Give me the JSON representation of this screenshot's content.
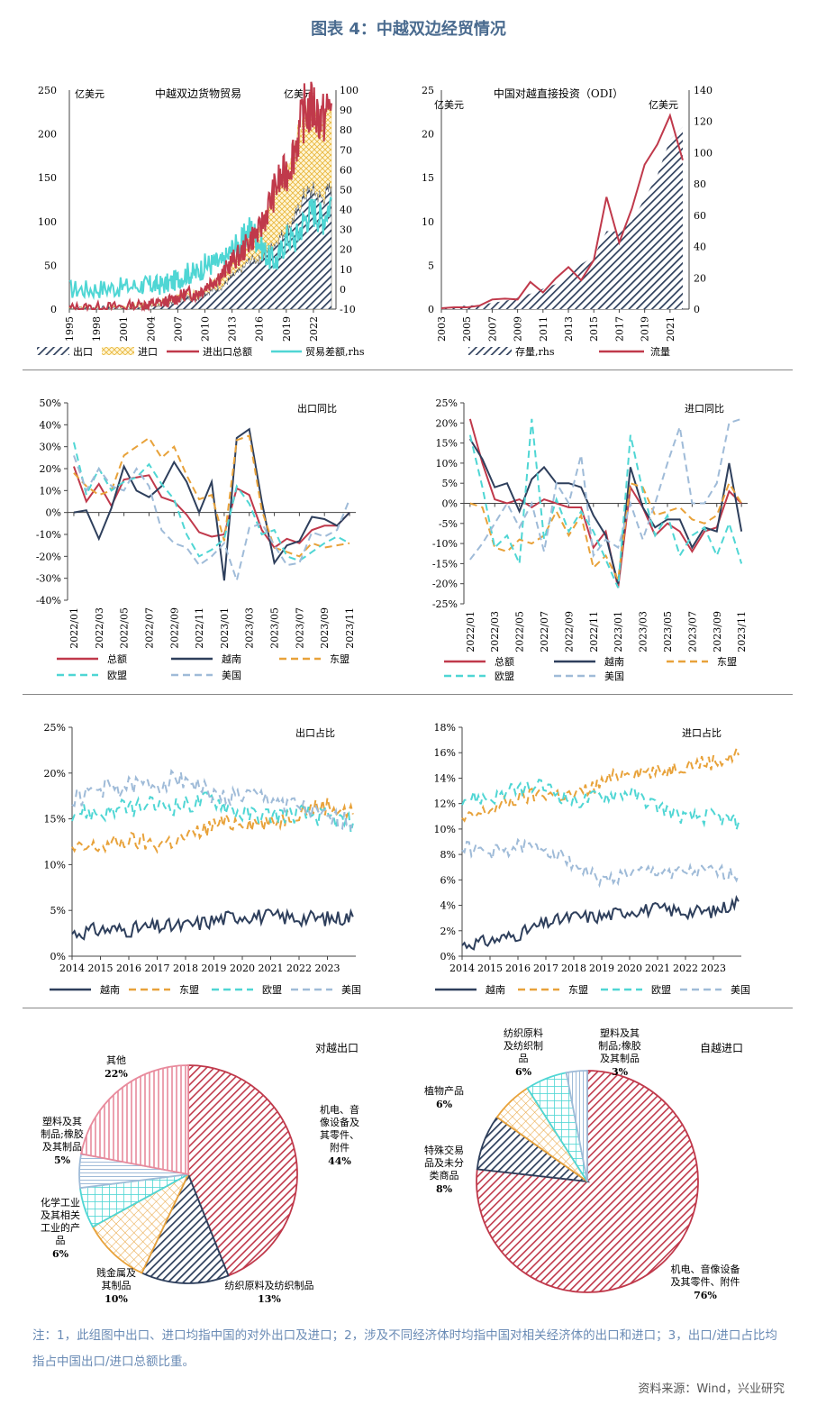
{
  "title": "图表 4：中越双边经贸情况",
  "note": "注：1，此组图中出口、进口均指中国的对外出口及进口；2，涉及不同经济体时均指中国对相关经济体的出口和进口；3，出口/进口占比均指占中国出口/进口总额比重。",
  "source": "资料来源：Wind，兴业研究",
  "colors": {
    "red": "#c0394b",
    "navy": "#2e3f5c",
    "orange": "#e8a23a",
    "teal": "#4fd6d4",
    "lightblue": "#9fbbd8"
  },
  "chart_data": [
    {
      "id": "trade",
      "type": "area",
      "title": "中越双边货物贸易",
      "unit_left": "亿美元",
      "unit_right": "亿美元",
      "ylim": [
        0,
        250
      ],
      "yticks": [
        0,
        50,
        100,
        150,
        200,
        250
      ],
      "y2lim": [
        -10,
        100
      ],
      "y2ticks": [
        -10,
        0,
        10,
        20,
        30,
        40,
        50,
        60,
        70,
        80,
        90,
        100
      ],
      "xlim": [
        1995,
        2024.5
      ],
      "xticks": [
        "1995",
        "1998",
        "2001",
        "2004",
        "2007",
        "2010",
        "2013",
        "2016",
        "2019",
        "2022"
      ],
      "x": [
        1995,
        1997,
        1999,
        2001,
        2003,
        2004,
        2005,
        2006,
        2007,
        2008,
        2009,
        2010,
        2011,
        2012,
        2013,
        2014,
        2015,
        2016,
        2017,
        2018,
        2019,
        2020,
        2021,
        2022,
        2023,
        2024
      ],
      "series": [
        {
          "name": "出口",
          "legend": "出口",
          "values": [
            0.5,
            0.8,
            1,
            1.5,
            2.5,
            3.5,
            4.5,
            6,
            9,
            13,
            12,
            18,
            22,
            26,
            37,
            43,
            56,
            56,
            66,
            78,
            90,
            105,
            130,
            135,
            125,
            140
          ]
        },
        {
          "name": "进口",
          "legend": "进口",
          "values": [
            0.5,
            0.6,
            0.8,
            1,
            1.5,
            2,
            2.5,
            3,
            4,
            5,
            5,
            7,
            10,
            13,
            17,
            20,
            25,
            33,
            50,
            64,
            64,
            80,
            95,
            95,
            90,
            95
          ]
        },
        {
          "name": "进出口总额",
          "legend": "进出口总额",
          "values": [
            1,
            1.5,
            2,
            3,
            4.5,
            6,
            7,
            9,
            13,
            18,
            17,
            25,
            33,
            40,
            55,
            63,
            80,
            88,
            116,
            143,
            155,
            185,
            225,
            230,
            215,
            235
          ]
        },
        {
          "name": "贸易差额",
          "legend": "贸易差额,rhs",
          "values": [
            0,
            0,
            0.5,
            1,
            2,
            2,
            2,
            3,
            5,
            8,
            8,
            12,
            13,
            13,
            20,
            23,
            31,
            24,
            16,
            14,
            26,
            25,
            35,
            40,
            35,
            45
          ]
        }
      ]
    },
    {
      "id": "odi",
      "type": "area",
      "title": "中国对越直接投资（ODI）",
      "unit_left": "亿美元",
      "unit_right": "亿美元",
      "ylim": [
        0,
        25
      ],
      "yticks": [
        0,
        5,
        10,
        15,
        20,
        25
      ],
      "y2lim": [
        0,
        140
      ],
      "y2ticks": [
        0,
        20,
        40,
        60,
        80,
        100,
        120,
        140
      ],
      "xlim": [
        2003,
        2022.5
      ],
      "xticks": [
        "2003",
        "2005",
        "2007",
        "2009",
        "2011",
        "2013",
        "2015",
        "2017",
        "2019",
        "2021"
      ],
      "x": [
        2003,
        2004,
        2005,
        2006,
        2007,
        2008,
        2009,
        2010,
        2011,
        2012,
        2013,
        2014,
        2015,
        2016,
        2017,
        2018,
        2019,
        2020,
        2021,
        2022
      ],
      "series": [
        {
          "name": "存量",
          "legend": "存量,rhs",
          "values": [
            0.3,
            1.6,
            2.3,
            2.5,
            4,
            5.2,
            7.3,
            9.9,
            13,
            16,
            21.7,
            28.7,
            33.7,
            49.8,
            49.7,
            56.1,
            70.7,
            85.7,
            108.5,
            116.6
          ]
        },
        {
          "name": "流量",
          "legend": "流量",
          "values": [
            0.1,
            0.2,
            0.2,
            0.4,
            1.1,
            1.2,
            1.1,
            3.1,
            1.9,
            3.5,
            4.8,
            3.3,
            5.6,
            12.8,
            7.6,
            11.5,
            16.5,
            18.8,
            22.1,
            17
          ]
        }
      ]
    },
    {
      "id": "export_yoy",
      "type": "line",
      "title": "出口同比",
      "ylim": [
        -40,
        50
      ],
      "yticks": [
        "-40%",
        "-30%",
        "-20%",
        "-10%",
        "0%",
        "10%",
        "20%",
        "30%",
        "40%",
        "50%"
      ],
      "categories": [
        "2022/01",
        "2022/02",
        "2022/03",
        "2022/04",
        "2022/05",
        "2022/06",
        "2022/07",
        "2022/08",
        "2022/09",
        "2022/10",
        "2022/11",
        "2022/12",
        "2023/01",
        "2023/02",
        "2023/03",
        "2023/04",
        "2023/05",
        "2023/06",
        "2023/07",
        "2023/08",
        "2023/09",
        "2023/10",
        "2023/11"
      ],
      "xticks": [
        "2022/01",
        "2022/03",
        "2022/05",
        "2022/07",
        "2022/09",
        "2022/11",
        "2023/01",
        "2023/03",
        "2023/05",
        "2023/07",
        "2023/09",
        "2023/11"
      ],
      "series": [
        {
          "name": "总额",
          "values": [
            21,
            5,
            13,
            3,
            15,
            16,
            17,
            7,
            5,
            -1,
            -9,
            -11,
            -10,
            11,
            8,
            -8,
            -16,
            -12,
            -14,
            -8,
            -6,
            -6,
            0
          ]
        },
        {
          "name": "越南",
          "values": [
            0,
            1,
            -12,
            2,
            21,
            10,
            7,
            12,
            23,
            14,
            0,
            14,
            -31,
            34,
            38,
            5,
            -23,
            -15,
            -13,
            -2,
            -3,
            -6,
            0
          ]
        },
        {
          "name": "东盟",
          "values": [
            18,
            12,
            8,
            10,
            26,
            30,
            34,
            25,
            30,
            17,
            6,
            8,
            -13,
            33,
            35,
            1,
            -16,
            -18,
            -20,
            -14,
            -16,
            -15,
            -14
          ]
        },
        {
          "name": "欧盟",
          "values": [
            32,
            8,
            20,
            10,
            14,
            16,
            22,
            13,
            6,
            -10,
            -20,
            -17,
            -12,
            12,
            4,
            -10,
            -8,
            -20,
            -22,
            -18,
            -14,
            -11,
            -14
          ]
        },
        {
          "name": "美国",
          "values": [
            26,
            10,
            20,
            12,
            10,
            20,
            12,
            -8,
            -14,
            -16,
            -24,
            -20,
            -14,
            -31,
            -7,
            -5,
            -15,
            -24,
            -23,
            -9,
            -11,
            -8,
            6
          ]
        }
      ]
    },
    {
      "id": "import_yoy",
      "type": "line",
      "title": "进口同比",
      "ylim": [
        -25,
        25
      ],
      "yticks": [
        "-25%",
        "-20%",
        "-15%",
        "-10%",
        "-5%",
        "0%",
        "5%",
        "10%",
        "15%",
        "20%",
        "25%"
      ],
      "categories": [
        "2022/01",
        "2022/02",
        "2022/03",
        "2022/04",
        "2022/05",
        "2022/06",
        "2022/07",
        "2022/08",
        "2022/09",
        "2022/10",
        "2022/11",
        "2022/12",
        "2023/01",
        "2023/02",
        "2023/03",
        "2023/04",
        "2023/05",
        "2023/06",
        "2023/07",
        "2023/08",
        "2023/09",
        "2023/10",
        "2023/11"
      ],
      "xticks": [
        "2022/01",
        "2022/03",
        "2022/05",
        "2022/07",
        "2022/09",
        "2022/11",
        "2023/01",
        "2023/03",
        "2023/05",
        "2023/07",
        "2023/09",
        "2023/11"
      ],
      "series": [
        {
          "name": "总额",
          "values": [
            21,
            10,
            1,
            0,
            1,
            -1,
            1,
            0,
            -1,
            -1,
            -11,
            -7,
            -21,
            4,
            -1,
            -8,
            -5,
            -7,
            -12,
            -7,
            -6,
            3,
            0
          ]
        },
        {
          "name": "越南",
          "values": [
            16,
            11,
            4,
            5,
            -2,
            6,
            9,
            5,
            5,
            4,
            -3,
            -8,
            -20,
            9,
            -1,
            -6,
            -4,
            -4,
            -11,
            -6,
            -7,
            10,
            -7
          ]
        },
        {
          "name": "东盟",
          "values": [
            0,
            -1,
            -11,
            -12,
            -9,
            -10,
            -8,
            -2,
            -8,
            -3,
            -16,
            -13,
            -19,
            5,
            4,
            -3,
            -2,
            -1,
            -4,
            -5,
            -3,
            5,
            0
          ]
        },
        {
          "name": "欧盟",
          "values": [
            17,
            4,
            -11,
            -8,
            -15,
            21,
            -9,
            1,
            -7,
            -2,
            -7,
            -14,
            -21,
            17,
            3,
            -8,
            -3,
            -13,
            -8,
            -6,
            -13,
            -5,
            -15
          ]
        },
        {
          "name": "美国",
          "values": [
            -14,
            -10,
            -5,
            0,
            -6,
            0,
            -12,
            5,
            0,
            12,
            -13,
            -9,
            -11,
            0,
            -9,
            0,
            10,
            19,
            0,
            0,
            5,
            20,
            21
          ]
        }
      ]
    },
    {
      "id": "export_share",
      "type": "line",
      "title": "出口占比",
      "ylim": [
        0,
        25
      ],
      "yticks": [
        "0%",
        "5%",
        "10%",
        "15%",
        "20%",
        "25%"
      ],
      "xlim": [
        2014,
        2024
      ],
      "xticks": [
        "2014",
        "2015",
        "2016",
        "2017",
        "2018",
        "2019",
        "2020",
        "2021",
        "2022",
        "2023"
      ],
      "x": [
        2014,
        2015,
        2016,
        2017,
        2018,
        2019,
        2020,
        2021,
        2022,
        2023,
        2023.9
      ],
      "series": [
        {
          "name": "越南",
          "values": [
            2.5,
            2.9,
            2.9,
            3.2,
            3.3,
            3.9,
            4.5,
            4.3,
            4.2,
            4.1,
            4.3
          ]
        },
        {
          "name": "东盟",
          "values": [
            11.5,
            12,
            12.6,
            12.2,
            12.9,
            14.3,
            14.8,
            14.4,
            15.9,
            16.5,
            15.5
          ]
        },
        {
          "name": "欧盟",
          "values": [
            15.8,
            15.6,
            16.2,
            16.4,
            16.5,
            17.2,
            15.5,
            15.4,
            15.6,
            15.1,
            14.5
          ]
        },
        {
          "name": "美国",
          "values": [
            17,
            18.3,
            18.5,
            18.9,
            19.5,
            17.4,
            17.5,
            17.2,
            16.3,
            14.9,
            14.8
          ]
        }
      ]
    },
    {
      "id": "import_share",
      "type": "line",
      "title": "进口占比",
      "ylim": [
        0,
        18
      ],
      "yticks": [
        "0%",
        "2%",
        "4%",
        "6%",
        "8%",
        "10%",
        "12%",
        "14%",
        "16%",
        "18%"
      ],
      "xlim": [
        2014,
        2024
      ],
      "xticks": [
        "2014",
        "2015",
        "2016",
        "2017",
        "2018",
        "2019",
        "2020",
        "2021",
        "2022",
        "2023"
      ],
      "x": [
        2014,
        2015,
        2016,
        2017,
        2018,
        2019,
        2020,
        2021,
        2022,
        2023,
        2023.9
      ],
      "series": [
        {
          "name": "越南",
          "values": [
            0.9,
            1.2,
            1.7,
            2.6,
            3.1,
            3.1,
            3.6,
            3.7,
            3.5,
            3.5,
            4.3
          ]
        },
        {
          "name": "东盟",
          "values": [
            10.6,
            11.5,
            12.4,
            12.8,
            12.6,
            13.6,
            14.7,
            14.4,
            15.1,
            15.3,
            15.8
          ]
        },
        {
          "name": "欧盟",
          "values": [
            12.5,
            12.4,
            13.1,
            13.3,
            12.1,
            12.6,
            12.9,
            11.8,
            10.9,
            11,
            10.5
          ]
        },
        {
          "name": "美国",
          "values": [
            8.6,
            8.1,
            8.6,
            8.5,
            7.3,
            5.9,
            6.5,
            6.7,
            6.6,
            6.6,
            6.4
          ]
        }
      ]
    },
    {
      "id": "export_pie",
      "type": "pie",
      "title": "对越出口",
      "slices": [
        {
          "label": "机电、音像设备及其零件、附件",
          "lines": [
            "机电、音",
            "像设备及",
            "其零件、",
            "附件"
          ],
          "pct": "44%",
          "value": 44,
          "fill": "redhatch"
        },
        {
          "label": "纺织原料及纺织制品",
          "lines": [
            "纺织原料及纺织制品"
          ],
          "pct": "13%",
          "value": 13,
          "fill": "navyhatch"
        },
        {
          "label": "贱金属及其制品",
          "lines": [
            "贱金属及",
            "其制品"
          ],
          "pct": "10%",
          "value": 10,
          "fill": "orangecross"
        },
        {
          "label": "化学工业及其相关工业的产品",
          "lines": [
            "化学工业",
            "及其相关",
            "工业的产",
            "品"
          ],
          "pct": "6%",
          "value": 6,
          "fill": "tealgrid"
        },
        {
          "label": "塑料及其制品;橡胶及其制品",
          "lines": [
            "塑料及其",
            "制品;橡胶",
            "及其制品"
          ],
          "pct": "5%",
          "value": 5,
          "fill": "bluehoriz"
        },
        {
          "label": "其他",
          "lines": [
            "其他"
          ],
          "pct": "22%",
          "value": 22,
          "fill": "pinkvert"
        }
      ]
    },
    {
      "id": "import_pie",
      "type": "pie",
      "title": "自越进口",
      "slices": [
        {
          "label": "机电、音像设备及其零件、附件",
          "lines": [
            "机电、音像设备",
            "及其零件、附件"
          ],
          "pct": "76%",
          "value": 76,
          "fill": "redhatch"
        },
        {
          "label": "特殊交易品及未分类商品",
          "lines": [
            "特殊交易",
            "品及未分",
            "类商品"
          ],
          "pct": "8%",
          "value": 8,
          "fill": "navyhatch"
        },
        {
          "label": "植物产品",
          "lines": [
            "植物产品"
          ],
          "pct": "6%",
          "value": 6,
          "fill": "orangecross"
        },
        {
          "label": "纺织原料及纺织制品",
          "lines": [
            "纺织原料",
            "及纺织制",
            "品"
          ],
          "pct": "6%",
          "value": 6,
          "fill": "tealgrid"
        },
        {
          "label": "塑料及其制品;橡胶及其制品",
          "lines": [
            "塑料及其",
            "制品;橡胶",
            "及其制品"
          ],
          "pct": "3%",
          "value": 3,
          "fill": "bluevert"
        }
      ]
    }
  ]
}
